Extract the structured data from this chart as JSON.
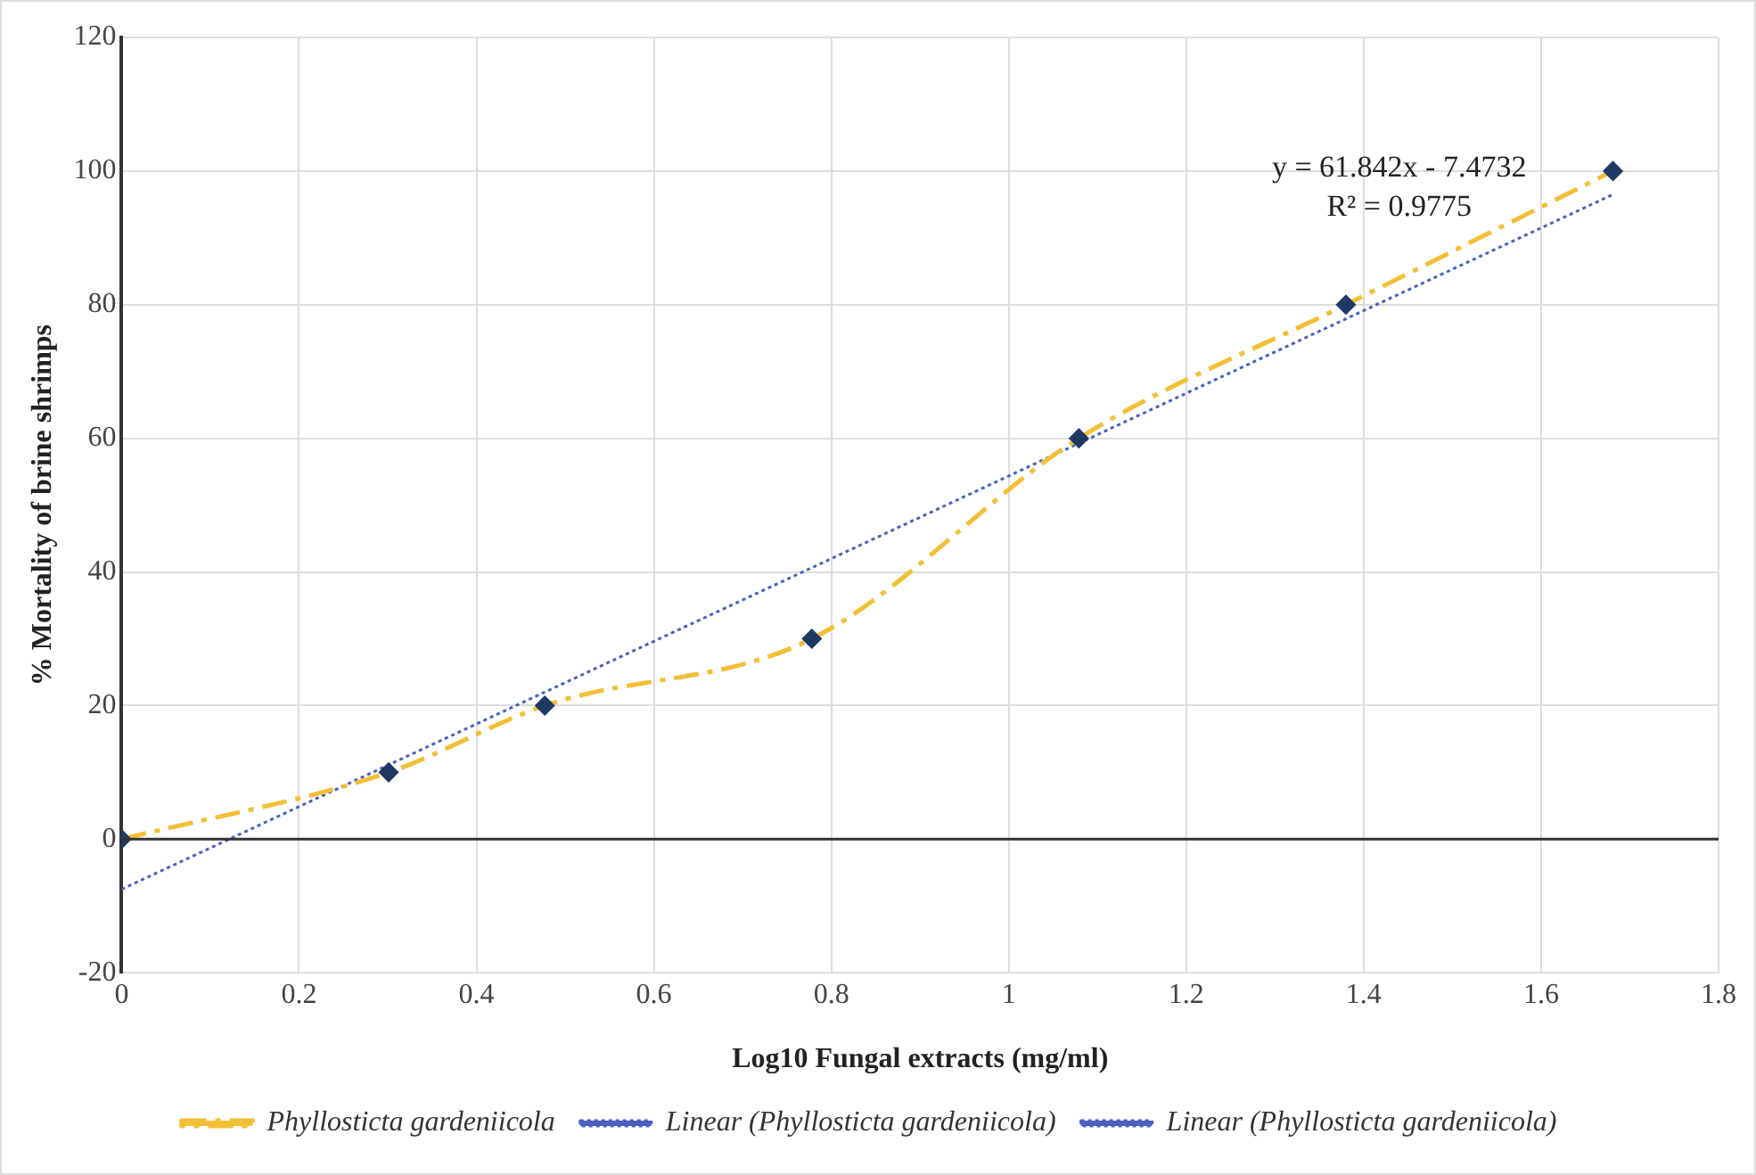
{
  "chart_data": {
    "type": "line",
    "xlabel": "Log10 Fungal extracts (mg/ml)",
    "ylabel": "% Mortality of brine shrimps",
    "x": [
      0,
      0.301,
      0.477,
      0.778,
      1.079,
      1.38,
      1.681
    ],
    "series": [
      {
        "name": "Phyllosticta gardeniicola",
        "color": "#f2c037",
        "colors": [
          "#1f3864",
          "#1f3864",
          "#1f3864",
          "#1f3864",
          "#1f3864",
          "#1f3864",
          "#1f3864"
        ],
        "values": [
          0,
          10,
          20,
          30,
          60,
          80,
          100
        ],
        "marker": "diamond",
        "line_style": "dashed"
      },
      {
        "name": "Linear (Phyllosticta gardeniicola)",
        "type": "line",
        "color": "#4a5fc1",
        "x": [
          0,
          1.681
        ],
        "values": [
          -7.5,
          96.5
        ],
        "marker": "none",
        "line_style": "dotted"
      },
      {
        "name": "Linear (Phyllosticta gardeniicola)",
        "type": "line",
        "color": "#4a5fc1",
        "values": [
          null,
          null,
          null,
          null,
          null,
          null,
          null
        ],
        "marker": "none",
        "line_style": "dotted"
      }
    ],
    "xlim": [
      0,
      1.8
    ],
    "xticks": [
      0,
      0.2,
      0.4,
      0.6,
      0.8,
      1,
      1.2,
      1.4,
      1.6,
      1.8
    ],
    "ylim": [
      -20,
      120
    ],
    "yticks": [
      -20,
      0,
      20,
      40,
      60,
      80,
      100,
      120
    ],
    "annotations": [
      "y = 61.842x - 7.4732",
      "R² = 0.9775"
    ],
    "grid": true,
    "legend": "bottom"
  }
}
